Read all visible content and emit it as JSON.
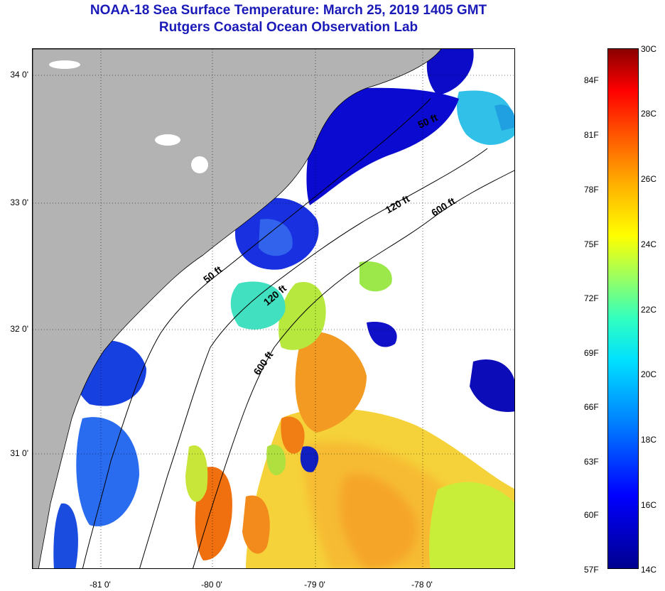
{
  "header": {
    "title": "NOAA-18 Sea Surface Temperature:  March 25, 2019 1405 GMT",
    "subtitle": "Rutgers Coastal Ocean Observation Lab"
  },
  "map": {
    "lat_ticks": [
      "34 0'",
      "33 0'",
      "32 0'",
      "31 0'"
    ],
    "lon_ticks": [
      "-81 0'",
      "-80 0'",
      "-79 0'",
      "-78 0'"
    ],
    "contour_labels": [
      "50 ft",
      "120 ft",
      "600 ft",
      "50 ft",
      "120 ft",
      "600 ft"
    ],
    "colors": {
      "land": "#b3b3b3",
      "cold": "#0a0ad0",
      "mid_blue": "#2a5cff",
      "cyan": "#20e0d8",
      "green": "#9be84a",
      "yellow": "#f0e020",
      "orange": "#f59a20",
      "deep_orange": "#f07010"
    }
  },
  "colorbar": {
    "fahrenheit_labels": [
      "84F",
      "81F",
      "78F",
      "75F",
      "72F",
      "69F",
      "66F",
      "63F",
      "60F",
      "57F"
    ],
    "celsius_labels": [
      "30C",
      "28C",
      "26C",
      "24C",
      "22C",
      "20C",
      "18C",
      "16C",
      "14C"
    ]
  }
}
